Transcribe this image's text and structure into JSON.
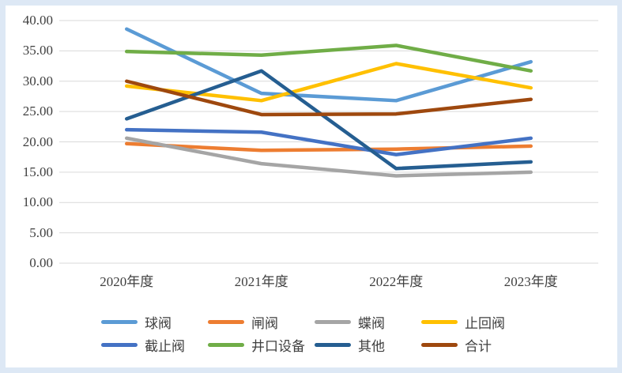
{
  "page": {
    "background_color": "#dde8f5",
    "panel_color": "#ffffff",
    "gridline_color": "#d9d9d9",
    "text_color": "#3f3f3f"
  },
  "chart_data": {
    "type": "line",
    "title": "",
    "xlabel": "",
    "ylabel": "",
    "categories": [
      "2020年度",
      "2021年度",
      "2022年度",
      "2023年度"
    ],
    "series": [
      {
        "name": "球阀",
        "color": "#5B9BD5",
        "values": [
          38.6,
          28.0,
          26.8,
          33.2
        ]
      },
      {
        "name": "闸阀",
        "color": "#ED7D31",
        "values": [
          19.7,
          18.6,
          18.8,
          19.3
        ]
      },
      {
        "name": "蝶阀",
        "color": "#A5A5A5",
        "values": [
          20.6,
          16.4,
          14.4,
          15.0
        ]
      },
      {
        "name": "止回阀",
        "color": "#FFC000",
        "values": [
          29.2,
          26.8,
          32.9,
          28.9
        ]
      },
      {
        "name": "截止阀",
        "color": "#4472C4",
        "values": [
          22.0,
          21.6,
          17.9,
          20.6
        ]
      },
      {
        "name": "井口设备",
        "color": "#70AD47",
        "values": [
          34.9,
          34.3,
          35.9,
          31.7
        ]
      },
      {
        "name": "其他",
        "color": "#255E91",
        "values": [
          23.8,
          31.7,
          15.6,
          16.7
        ]
      },
      {
        "name": "合计",
        "color": "#9E480E",
        "values": [
          30.0,
          24.5,
          24.6,
          27.0
        ]
      }
    ],
    "y_axis": {
      "min": 0,
      "max": 40,
      "step": 5,
      "ticks": [
        {
          "label": "0.00",
          "value": 0
        },
        {
          "label": "5.00",
          "value": 5
        },
        {
          "label": "10.00",
          "value": 10
        },
        {
          "label": "15.00",
          "value": 15
        },
        {
          "label": "20.00",
          "value": 20
        },
        {
          "label": "25.00",
          "value": 25
        },
        {
          "label": "30.00",
          "value": 30
        },
        {
          "label": "35.00",
          "value": 35
        },
        {
          "label": "40.00",
          "value": 40
        }
      ]
    },
    "grid": true,
    "legend_position": "bottom",
    "legend_rows": [
      [
        "球阀",
        "闸阀",
        "蝶阀",
        "止回阀"
      ],
      [
        "截止阀",
        "井口设备",
        "其他",
        "合计"
      ]
    ]
  }
}
